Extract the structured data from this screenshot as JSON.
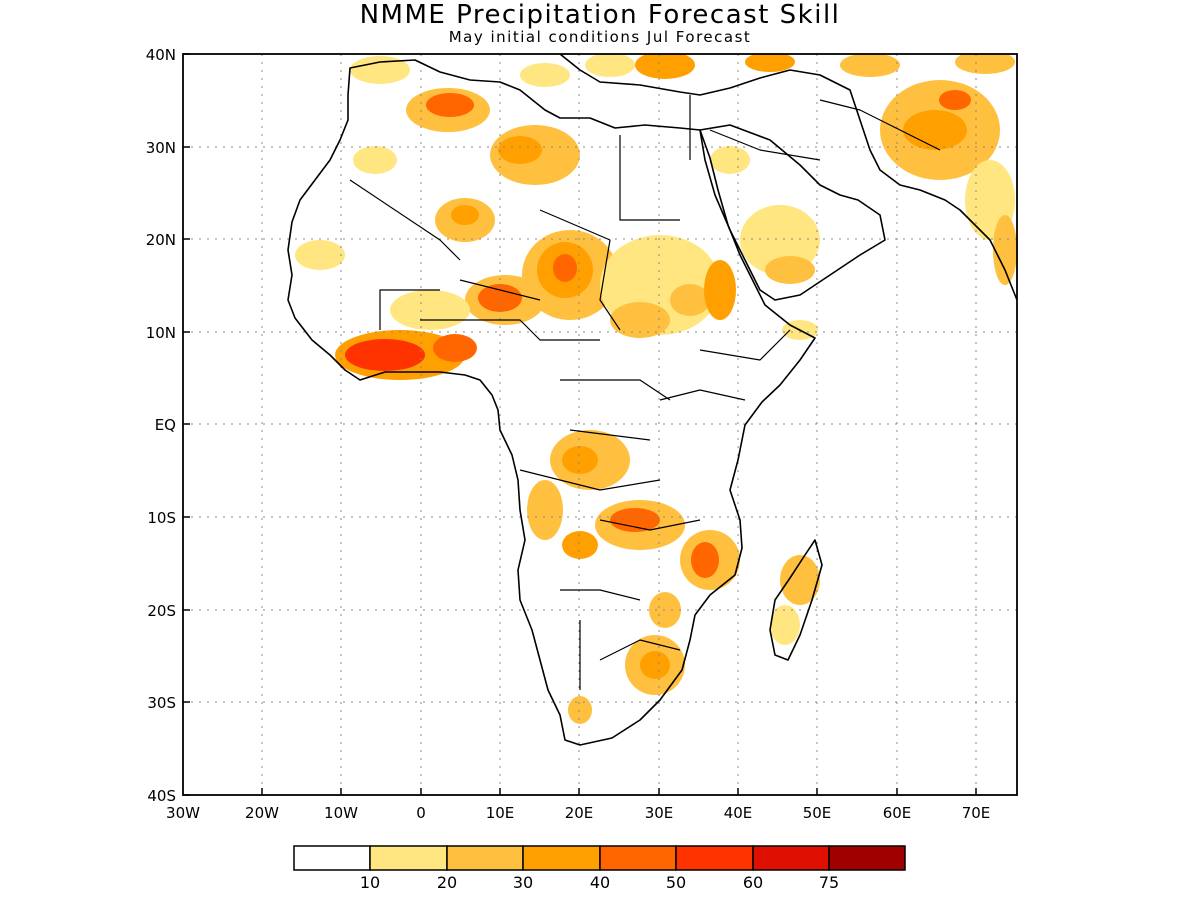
{
  "title": "NMME Precipitation Forecast Skill",
  "subtitle": "May initial conditions  Jul Forecast",
  "lat_labels": [
    "40N",
    "30N",
    "20N",
    "10N",
    "EQ",
    "10S",
    "20S",
    "30S",
    "40S"
  ],
  "lon_labels": [
    "30W",
    "20W",
    "10W",
    "0",
    "10E",
    "20E",
    "30E",
    "40E",
    "50E",
    "60E",
    "70E"
  ],
  "colorbar": {
    "colors": [
      "#ffffff",
      "#ffe680",
      "#ffc040",
      "#ffa000",
      "#ff6600",
      "#ff3300",
      "#e01000",
      "#a00000"
    ],
    "labels": [
      "10",
      "20",
      "30",
      "40",
      "50",
      "60",
      "75"
    ]
  },
  "colors": {
    "land_outline": "#000000",
    "grid": "#888888"
  }
}
